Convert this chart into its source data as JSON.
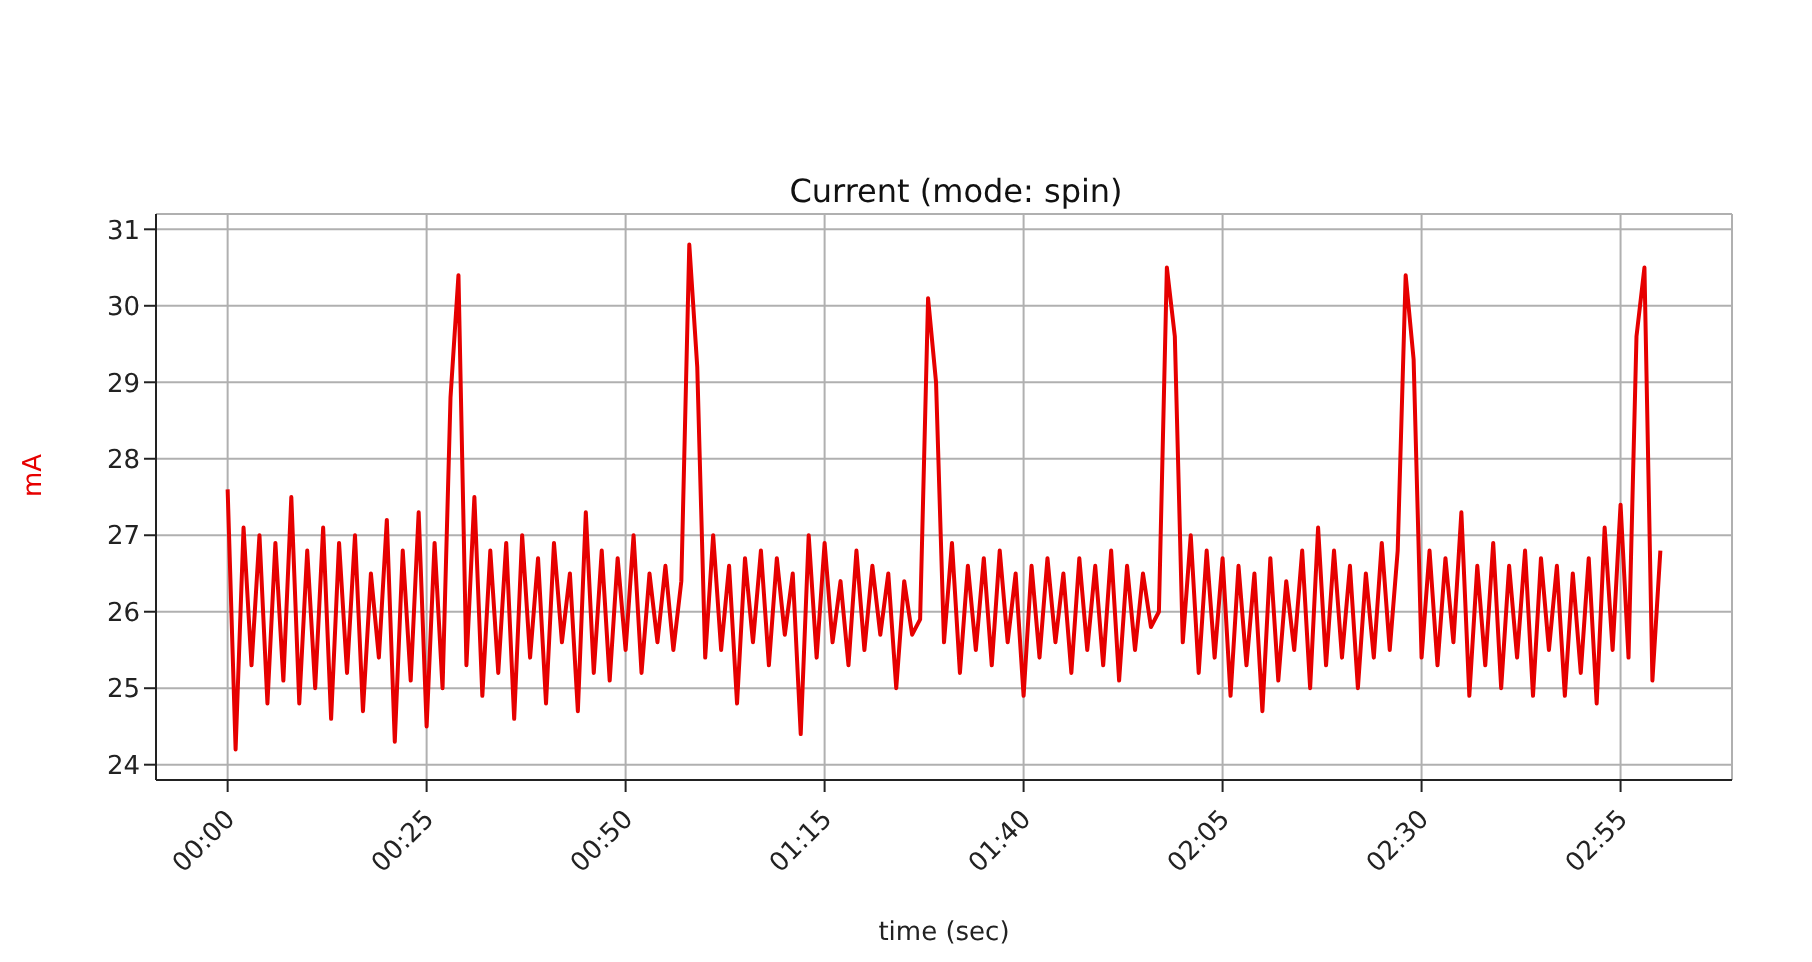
{
  "chart_data": {
    "type": "line",
    "title": "Current (mode: spin)",
    "xlabel": "time (sec)",
    "ylabel": "mA",
    "x": [
      0,
      1,
      2,
      3,
      4,
      5,
      6,
      7,
      8,
      9,
      10,
      11,
      12,
      13,
      14,
      15,
      16,
      17,
      18,
      19,
      20,
      21,
      22,
      23,
      24,
      25,
      26,
      27,
      28,
      29,
      30,
      31,
      32,
      33,
      34,
      35,
      36,
      37,
      38,
      39,
      40,
      41,
      42,
      43,
      44,
      45,
      46,
      47,
      48,
      49,
      50,
      51,
      52,
      53,
      54,
      55,
      56,
      57,
      58,
      59,
      60,
      61,
      62,
      63,
      64,
      65,
      66,
      67,
      68,
      69,
      70,
      71,
      72,
      73,
      74,
      75,
      76,
      77,
      78,
      79,
      80,
      81,
      82,
      83,
      84,
      85,
      86,
      87,
      88,
      89,
      90,
      91,
      92,
      93,
      94,
      95,
      96,
      97,
      98,
      99,
      100,
      101,
      102,
      103,
      104,
      105,
      106,
      107,
      108,
      109,
      110,
      111,
      112,
      113,
      114,
      115,
      116,
      117,
      118,
      119,
      120,
      121,
      122,
      123,
      124,
      125,
      126,
      127,
      128,
      129,
      130,
      131,
      132,
      133,
      134,
      135,
      136,
      137,
      138,
      139,
      140,
      141,
      142,
      143,
      144,
      145,
      146,
      147,
      148,
      149,
      150,
      151,
      152,
      153,
      154,
      155,
      156,
      157,
      158,
      159,
      160,
      161,
      162,
      163,
      164,
      165,
      166,
      167,
      168,
      169,
      170,
      171,
      172,
      173,
      174,
      175,
      176,
      177,
      178,
      179,
      180
    ],
    "series": [
      {
        "color": "#e60000",
        "values": [
          27.6,
          24.2,
          27.1,
          25.3,
          27.0,
          24.8,
          26.9,
          25.1,
          27.5,
          24.8,
          26.8,
          25.0,
          27.1,
          24.6,
          26.9,
          25.2,
          27.0,
          24.7,
          26.5,
          25.4,
          27.2,
          24.3,
          26.8,
          25.1,
          27.3,
          24.5,
          26.9,
          25.0,
          28.8,
          30.4,
          25.3,
          27.5,
          24.9,
          26.8,
          25.2,
          26.9,
          24.6,
          27.0,
          25.4,
          26.7,
          24.8,
          26.9,
          25.6,
          26.5,
          24.7,
          27.3,
          25.2,
          26.8,
          25.1,
          26.7,
          25.5,
          27.0,
          25.2,
          26.5,
          25.6,
          26.6,
          25.5,
          26.4,
          30.8,
          29.2,
          25.4,
          27.0,
          25.5,
          26.6,
          24.8,
          26.7,
          25.6,
          26.8,
          25.3,
          26.7,
          25.7,
          26.5,
          24.4,
          27.0,
          25.4,
          26.9,
          25.6,
          26.4,
          25.3,
          26.8,
          25.5,
          26.6,
          25.7,
          26.5,
          25.0,
          26.4,
          25.7,
          25.9,
          30.1,
          29.0,
          25.6,
          26.9,
          25.2,
          26.6,
          25.5,
          26.7,
          25.3,
          26.8,
          25.6,
          26.5,
          24.9,
          26.6,
          25.4,
          26.7,
          25.6,
          26.5,
          25.2,
          26.7,
          25.5,
          26.6,
          25.3,
          26.8,
          25.1,
          26.6,
          25.5,
          26.5,
          25.8,
          26.0,
          30.5,
          29.6,
          25.6,
          27.0,
          25.2,
          26.8,
          25.4,
          26.7,
          24.9,
          26.6,
          25.3,
          26.5,
          24.7,
          26.7,
          25.1,
          26.4,
          25.5,
          26.8,
          25.0,
          27.1,
          25.3,
          26.8,
          25.4,
          26.6,
          25.0,
          26.5,
          25.4,
          26.9,
          25.5,
          26.8,
          30.4,
          29.3,
          25.4,
          26.8,
          25.3,
          26.7,
          25.6,
          27.3,
          24.9,
          26.6,
          25.3,
          26.9,
          25.0,
          26.6,
          25.4,
          26.8,
          24.9,
          26.7,
          25.5,
          26.6,
          24.9,
          26.5,
          25.2,
          26.7,
          24.8,
          27.1,
          25.5,
          27.4,
          25.4,
          29.6,
          30.5,
          25.1,
          26.8
        ]
      }
    ],
    "xlim": [
      -9,
      189
    ],
    "xticks": [
      {
        "value": 0,
        "label": "00:00"
      },
      {
        "value": 25,
        "label": "00:25"
      },
      {
        "value": 50,
        "label": "00:50"
      },
      {
        "value": 75,
        "label": "01:15"
      },
      {
        "value": 100,
        "label": "01:40"
      },
      {
        "value": 125,
        "label": "02:05"
      },
      {
        "value": 150,
        "label": "02:30"
      },
      {
        "value": 175,
        "label": "02:55"
      }
    ],
    "ylim": [
      23.8,
      31.2
    ],
    "yticks": [
      24,
      25,
      26,
      27,
      28,
      29,
      30,
      31
    ],
    "grid": true,
    "marker": "none",
    "line_style": "solid"
  }
}
